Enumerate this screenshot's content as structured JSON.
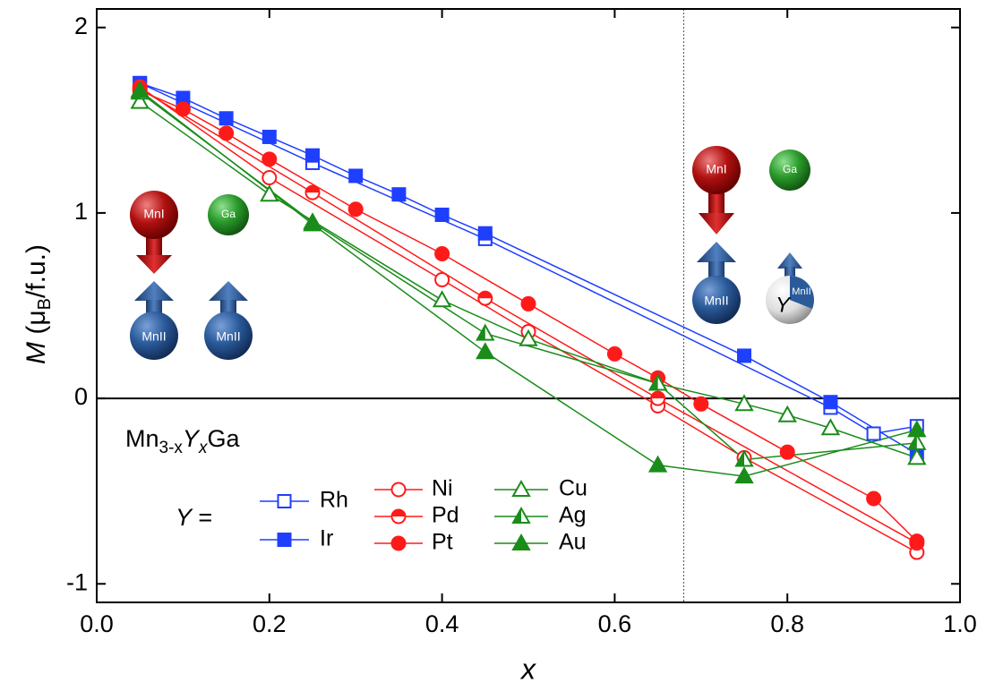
{
  "chart_data": {
    "type": "line",
    "xlabel": "x",
    "ylabel_parts": [
      "M",
      " (μ",
      "B",
      "/f.u.)"
    ],
    "xlim": [
      0,
      1
    ],
    "ylim": [
      -1.1,
      2.1
    ],
    "xticks": [
      {
        "value": 0,
        "label": "0.0"
      },
      {
        "value": 0.2,
        "label": "0.2"
      },
      {
        "value": 0.4,
        "label": "0.4"
      },
      {
        "value": 0.6,
        "label": "0.6"
      },
      {
        "value": 0.8,
        "label": "0.8"
      },
      {
        "value": 1,
        "label": "1.0"
      }
    ],
    "yticks": [
      -1,
      0,
      1,
      2
    ],
    "zero_line": 0,
    "vline": 0.68,
    "formula_parts": [
      "Mn",
      "3-x",
      "Y",
      "x",
      "Ga"
    ],
    "legend_prefix": "Y =",
    "series": [
      {
        "name": "Rh",
        "color": "#1f3fff",
        "marker": "square",
        "fill": "open",
        "x": [
          0.05,
          0.25,
          0.45,
          0.85,
          0.9,
          0.95
        ],
        "values": [
          1.7,
          1.27,
          0.86,
          -0.05,
          -0.19,
          -0.15
        ]
      },
      {
        "name": "Ir",
        "color": "#1f3fff",
        "marker": "square",
        "fill": "full",
        "x": [
          0.05,
          0.1,
          0.15,
          0.2,
          0.25,
          0.3,
          0.35,
          0.4,
          0.45,
          0.75,
          0.85,
          0.95
        ],
        "values": [
          1.7,
          1.62,
          1.51,
          1.41,
          1.31,
          1.2,
          1.1,
          0.99,
          0.89,
          0.23,
          -0.02,
          -0.3
        ]
      },
      {
        "name": "Ni",
        "color": "#ff1a1a",
        "marker": "circle",
        "fill": "open",
        "x": [
          0.05,
          0.2,
          0.4,
          0.5,
          0.65,
          0.75,
          0.95
        ],
        "values": [
          1.68,
          1.19,
          0.64,
          0.36,
          -0.04,
          -0.32,
          -0.83
        ]
      },
      {
        "name": "Pd",
        "color": "#ff1a1a",
        "marker": "circle",
        "fill": "half",
        "x": [
          0.05,
          0.25,
          0.45,
          0.65,
          0.95
        ],
        "values": [
          1.67,
          1.11,
          0.54,
          0.0,
          -0.78
        ]
      },
      {
        "name": "Pt",
        "color": "#ff1a1a",
        "marker": "circle",
        "fill": "full",
        "x": [
          0.05,
          0.1,
          0.15,
          0.2,
          0.3,
          0.4,
          0.5,
          0.6,
          0.65,
          0.7,
          0.8,
          0.9,
          0.95
        ],
        "values": [
          1.66,
          1.56,
          1.43,
          1.29,
          1.02,
          0.78,
          0.51,
          0.24,
          0.11,
          -0.03,
          -0.29,
          -0.54,
          -0.77
        ]
      },
      {
        "name": "Cu",
        "color": "#1a8c1a",
        "marker": "triangle",
        "fill": "open",
        "x": [
          0.05,
          0.2,
          0.4,
          0.5,
          0.65,
          0.75,
          0.8,
          0.85,
          0.95
        ],
        "values": [
          1.6,
          1.1,
          0.53,
          0.32,
          0.08,
          -0.03,
          -0.09,
          -0.16,
          -0.32
        ]
      },
      {
        "name": "Ag",
        "color": "#1a8c1a",
        "marker": "triangle",
        "fill": "half",
        "x": [
          0.05,
          0.25,
          0.45,
          0.65,
          0.75,
          0.95
        ],
        "values": [
          1.65,
          0.95,
          0.35,
          0.08,
          -0.33,
          -0.24
        ]
      },
      {
        "name": "Au",
        "color": "#1a8c1a",
        "marker": "triangle",
        "fill": "full",
        "x": [
          0.05,
          0.25,
          0.45,
          0.65,
          0.75,
          0.95
        ],
        "values": [
          1.66,
          0.94,
          0.25,
          -0.36,
          -0.42,
          -0.17
        ]
      }
    ],
    "atoms_left": [
      "MnI",
      "Ga",
      "MnII",
      "MnII"
    ],
    "atoms_right": [
      "MnI",
      "Ga",
      "MnII",
      "Y",
      "MnII"
    ]
  }
}
